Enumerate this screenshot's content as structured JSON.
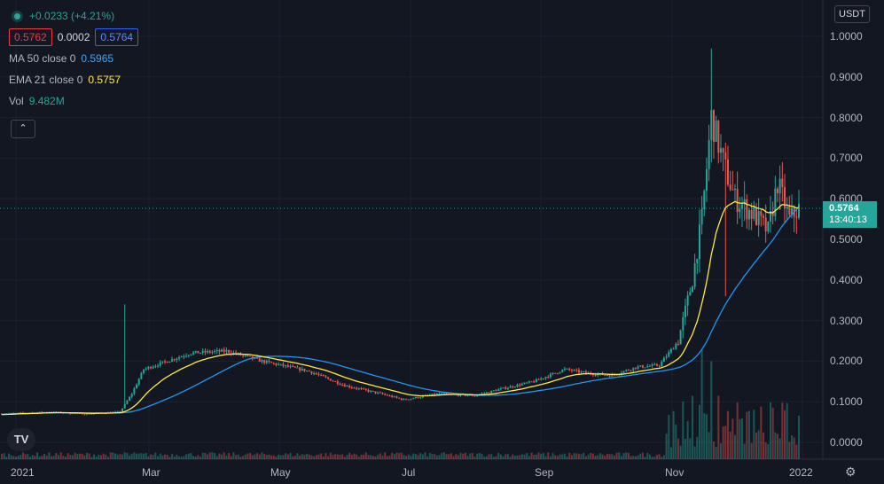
{
  "legend": {
    "change": "+0.0233 (+4.21%)",
    "bid": "0.5762",
    "spread": "0.0002",
    "ask": "0.5764",
    "ma": {
      "label": "MA 50 close 0",
      "value": "0.5965"
    },
    "ema": {
      "label": "EMA 21 close 0",
      "value": "0.5757"
    },
    "vol": {
      "label": "Vol",
      "value": "9.482M"
    },
    "collapse_glyph": "⌃"
  },
  "currency": "USDT",
  "last_price": {
    "value": "0.5764",
    "countdown": "13:40:13"
  },
  "x_ticks": [
    "2021",
    "Mar",
    "May",
    "Jul",
    "Sep",
    "Nov",
    "2022"
  ],
  "y_ticks": [
    "1.0000",
    "0.9000",
    "0.8000",
    "0.7000",
    "0.6000",
    "0.5000",
    "0.4000",
    "0.3000",
    "0.2000",
    "0.1000",
    "0.0000"
  ],
  "logo_text": "TV",
  "colors": {
    "background": "#131722",
    "up": "#26a69a",
    "down": "#ef5350",
    "ma": "#2196f3",
    "ema": "#ffeb3b"
  },
  "chart_data": {
    "type": "candlestick",
    "y_range": [
      0.0,
      1.0
    ],
    "ma_period": 50,
    "ema_period": 21,
    "anchors": [
      [
        0,
        0.07
      ],
      [
        20,
        0.075
      ],
      [
        35,
        0.07
      ],
      [
        50,
        0.075
      ],
      [
        55,
        0.12
      ],
      [
        60,
        0.18
      ],
      [
        70,
        0.2
      ],
      [
        80,
        0.22
      ],
      [
        95,
        0.225
      ],
      [
        110,
        0.2
      ],
      [
        130,
        0.175
      ],
      [
        145,
        0.14
      ],
      [
        160,
        0.12
      ],
      [
        170,
        0.105
      ],
      [
        185,
        0.12
      ],
      [
        200,
        0.115
      ],
      [
        210,
        0.13
      ],
      [
        225,
        0.15
      ],
      [
        238,
        0.18
      ],
      [
        248,
        0.17
      ],
      [
        258,
        0.165
      ],
      [
        268,
        0.185
      ],
      [
        278,
        0.19
      ],
      [
        286,
        0.25
      ],
      [
        292,
        0.4
      ],
      [
        296,
        0.55
      ],
      [
        300,
        0.8
      ],
      [
        305,
        0.69
      ],
      [
        310,
        0.6
      ],
      [
        318,
        0.56
      ],
      [
        324,
        0.52
      ],
      [
        328,
        0.64
      ],
      [
        333,
        0.55
      ],
      [
        337,
        0.576
      ]
    ],
    "volume_spikes": [
      [
        52,
        0.06
      ],
      [
        285,
        0.3
      ],
      [
        292,
        0.55
      ],
      [
        296,
        0.95
      ],
      [
        300,
        0.85
      ],
      [
        303,
        0.55
      ],
      [
        309,
        0.35
      ],
      [
        320,
        0.25
      ],
      [
        328,
        0.22
      ],
      [
        333,
        0.15
      ]
    ]
  }
}
